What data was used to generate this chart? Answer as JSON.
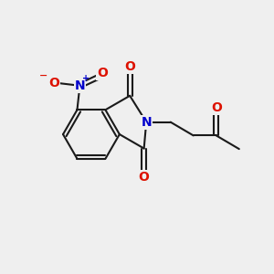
{
  "background_color": "#efefef",
  "bond_color": "#1a1a1a",
  "bond_width": 1.5,
  "atom_colors": {
    "O": "#dd1100",
    "N": "#0000cc",
    "C": "#1a1a1a"
  },
  "font_size_atoms": 10,
  "font_size_charge": 7,
  "figsize": [
    3.0,
    3.0
  ],
  "dpi": 100
}
